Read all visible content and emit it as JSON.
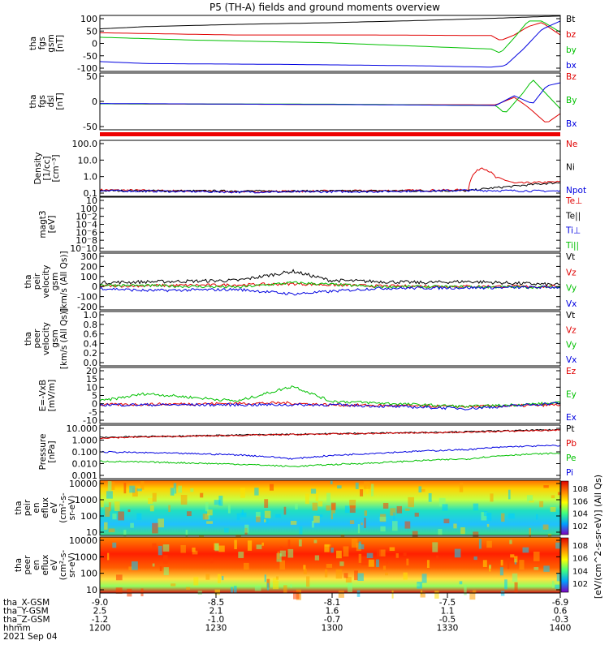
{
  "title": "P5 (TH-A) fields and ground moments overview",
  "chart_data": [
    {
      "type": "line",
      "panel_id": "fgs-gsm",
      "ylabel_lines": [
        "tha",
        "fgs",
        "gsm",
        "[nT]"
      ],
      "ylim": [
        -100,
        100
      ],
      "yticks": [
        "100",
        "50",
        "0",
        "-50",
        "-100"
      ],
      "series": [
        {
          "name": "Bt",
          "color": "#000000",
          "points": [
            [
              0,
              52
            ],
            [
              0.1,
              60
            ],
            [
              0.3,
              68
            ],
            [
              0.5,
              74
            ],
            [
              0.7,
              82
            ],
            [
              0.86,
              90
            ],
            [
              1.0,
              98
            ]
          ]
        },
        {
          "name": "bz",
          "color": "#e00000",
          "points": [
            [
              0,
              38
            ],
            [
              0.3,
              30
            ],
            [
              0.6,
              30
            ],
            [
              0.85,
              28
            ],
            [
              0.87,
              10
            ],
            [
              0.9,
              30
            ],
            [
              0.93,
              60
            ],
            [
              0.96,
              75
            ],
            [
              1.0,
              30
            ]
          ]
        },
        {
          "name": "by",
          "color": "#00c000",
          "points": [
            [
              0,
              22
            ],
            [
              0.2,
              12
            ],
            [
              0.5,
              2
            ],
            [
              0.85,
              -20
            ],
            [
              0.87,
              -35
            ],
            [
              0.9,
              20
            ],
            [
              0.93,
              80
            ],
            [
              0.96,
              80
            ],
            [
              1.0,
              40
            ]
          ]
        },
        {
          "name": "bx",
          "color": "#0000e0",
          "points": [
            [
              0,
              -65
            ],
            [
              0.1,
              -72
            ],
            [
              0.4,
              -75
            ],
            [
              0.7,
              -80
            ],
            [
              0.85,
              -85
            ],
            [
              0.88,
              -80
            ],
            [
              0.92,
              -20
            ],
            [
              0.96,
              50
            ],
            [
              1.0,
              80
            ]
          ]
        }
      ]
    },
    {
      "type": "line",
      "panel_id": "fgs-dsl",
      "ylabel_lines": [
        "tha",
        "fgs",
        "dsl",
        "[nT]"
      ],
      "ylim": [
        -75,
        100
      ],
      "yticks": [
        "50",
        "0",
        "-50"
      ],
      "series": [
        {
          "name": "Bz",
          "color": "#e00000",
          "points": [
            [
              0,
              5
            ],
            [
              0.5,
              3
            ],
            [
              0.86,
              2
            ],
            [
              0.9,
              25
            ],
            [
              0.93,
              -5
            ],
            [
              0.97,
              -55
            ],
            [
              1.0,
              -25
            ]
          ]
        },
        {
          "name": "By",
          "color": "#00c000",
          "points": [
            [
              0,
              5
            ],
            [
              0.5,
              4
            ],
            [
              0.86,
              0
            ],
            [
              0.88,
              -25
            ],
            [
              0.92,
              40
            ],
            [
              0.94,
              80
            ],
            [
              0.98,
              20
            ],
            [
              1.0,
              -10
            ]
          ]
        },
        {
          "name": "Bx",
          "color": "#0000e0",
          "points": [
            [
              0,
              6
            ],
            [
              0.5,
              3
            ],
            [
              0.86,
              0
            ],
            [
              0.9,
              30
            ],
            [
              0.94,
              5
            ],
            [
              0.97,
              60
            ],
            [
              1.0,
              70
            ]
          ]
        }
      ]
    },
    {
      "type": "line",
      "panel_id": "density",
      "ylabel_lines": [
        "Density",
        "[1/cc]",
        "[cm^-3]"
      ],
      "yscale": "log",
      "ylim": [
        0.1,
        100
      ],
      "yticks": [
        "100.0",
        "10.0",
        "1.0",
        "0.1"
      ],
      "series": [
        {
          "name": "Ne",
          "color": "#e00000",
          "points": [
            [
              0,
              0.22
            ],
            [
              0.3,
              0.18
            ],
            [
              0.6,
              0.2
            ],
            [
              0.8,
              0.22
            ],
            [
              0.83,
              3.5
            ],
            [
              0.86,
              1.0
            ],
            [
              0.9,
              0.5
            ],
            [
              1.0,
              0.6
            ]
          ]
        },
        {
          "name": "Ni",
          "color": "#000000",
          "points": [
            [
              0,
              0.2
            ],
            [
              0.4,
              0.19
            ],
            [
              0.8,
              0.2
            ],
            [
              0.9,
              0.35
            ],
            [
              1.0,
              0.55
            ]
          ]
        },
        {
          "name": "Npot",
          "color": "#0000e0",
          "points": [
            [
              0,
              0.2
            ],
            [
              0.3,
              0.17
            ],
            [
              0.6,
              0.18
            ],
            [
              0.8,
              0.21
            ],
            [
              1.0,
              0.19
            ]
          ]
        }
      ]
    },
    {
      "type": "line",
      "panel_id": "temperature",
      "ylabel_lines": [
        "magt3",
        "[eV]"
      ],
      "yscale": "log",
      "yticks": [
        "10",
        "10^0",
        "10^-2",
        "10^-4",
        "10^-6",
        "10^-8",
        "10^-10"
      ],
      "series": [
        {
          "name": "Te⊥",
          "color": "#e00000"
        },
        {
          "name": "Te||",
          "color": "#000000"
        },
        {
          "name": "Ti⊥",
          "color": "#0000e0"
        },
        {
          "name": "Ti||",
          "color": "#00c000"
        }
      ]
    },
    {
      "type": "line",
      "panel_id": "peir-velocity",
      "ylabel_lines": [
        "tha",
        "peir",
        "velocity",
        "gsm",
        "[km/s (All Qs)]"
      ],
      "ylim": [
        -200,
        300
      ],
      "yticks": [
        "300",
        "200",
        "100",
        "0",
        "-100",
        "-200"
      ],
      "series": [
        {
          "name": "Vt",
          "color": "#000000",
          "points": [
            [
              0,
              40
            ],
            [
              0.3,
              60
            ],
            [
              0.42,
              140
            ],
            [
              0.5,
              60
            ],
            [
              0.7,
              40
            ],
            [
              0.8,
              50
            ],
            [
              1.0,
              20
            ]
          ]
        },
        {
          "name": "Vz",
          "color": "#e00000",
          "points": [
            [
              0,
              10
            ],
            [
              0.3,
              20
            ],
            [
              0.42,
              30
            ],
            [
              0.6,
              10
            ],
            [
              1.0,
              5
            ]
          ]
        },
        {
          "name": "Vy",
          "color": "#00c000",
          "points": [
            [
              0,
              20
            ],
            [
              0.3,
              0
            ],
            [
              0.42,
              40
            ],
            [
              0.6,
              5
            ],
            [
              1.0,
              0
            ]
          ]
        },
        {
          "name": "Vx",
          "color": "#0000e0",
          "points": [
            [
              0,
              -10
            ],
            [
              0.1,
              -30
            ],
            [
              0.3,
              -20
            ],
            [
              0.42,
              -60
            ],
            [
              0.6,
              -10
            ],
            [
              1.0,
              0
            ]
          ]
        }
      ]
    },
    {
      "type": "line",
      "panel_id": "peer-velocity",
      "ylabel_lines": [
        "tha",
        "peer",
        "velocity",
        "gsm",
        "[km/s (All Qs)]"
      ],
      "ylim": [
        0,
        1
      ],
      "yticks": [
        "1.0",
        "0.8",
        "0.6",
        "0.4",
        "0.2",
        "0.0"
      ],
      "series": [
        {
          "name": "Vt",
          "color": "#000000"
        },
        {
          "name": "Vz",
          "color": "#e00000"
        },
        {
          "name": "Vy",
          "color": "#00c000"
        },
        {
          "name": "Vx",
          "color": "#0000e0"
        }
      ]
    },
    {
      "type": "line",
      "panel_id": "efield",
      "ylabel_lines": [
        "E=-VxB",
        "[mV/m]"
      ],
      "ylim": [
        -10,
        20
      ],
      "yticks": [
        "20",
        "15",
        "10",
        "5",
        "0",
        "-5",
        "-10"
      ],
      "series": [
        {
          "name": "Ez",
          "color": "#e00000",
          "points": [
            [
              0,
              0
            ],
            [
              0.4,
              1
            ],
            [
              0.5,
              0
            ],
            [
              0.8,
              -1
            ],
            [
              1.0,
              0
            ]
          ]
        },
        {
          "name": "Ey",
          "color": "#00c000",
          "points": [
            [
              0,
              2
            ],
            [
              0.1,
              6
            ],
            [
              0.3,
              2
            ],
            [
              0.42,
              10
            ],
            [
              0.5,
              2
            ],
            [
              0.8,
              -1
            ],
            [
              1.0,
              1
            ]
          ]
        },
        {
          "name": "Ex",
          "color": "#0000e0",
          "points": [
            [
              0,
              0
            ],
            [
              0.5,
              0
            ],
            [
              0.8,
              -2
            ],
            [
              1.0,
              1
            ]
          ]
        }
      ]
    },
    {
      "type": "line",
      "panel_id": "pressure",
      "ylabel_lines": [
        "Pressure",
        "[nPa]"
      ],
      "yscale": "log",
      "ylim": [
        0.001,
        10
      ],
      "yticks": [
        "10.000",
        "1.000",
        "0.100",
        "0.010",
        "0.001"
      ],
      "series": [
        {
          "name": "Pt",
          "color": "#000000",
          "points": [
            [
              0,
              1.2
            ],
            [
              0.3,
              1.8
            ],
            [
              0.6,
              2.5
            ],
            [
              0.8,
              3.2
            ],
            [
              1.0,
              4.5
            ]
          ]
        },
        {
          "name": "Pb",
          "color": "#e00000",
          "points": [
            [
              0,
              1.1
            ],
            [
              0.3,
              1.7
            ],
            [
              0.6,
              2.4
            ],
            [
              0.8,
              3.0
            ],
            [
              1.0,
              4.2
            ]
          ]
        },
        {
          "name": "Pe",
          "color": "#00c000",
          "points": [
            [
              0,
              0.02
            ],
            [
              0.3,
              0.012
            ],
            [
              0.42,
              0.008
            ],
            [
              0.6,
              0.015
            ],
            [
              0.8,
              0.03
            ],
            [
              0.9,
              0.06
            ],
            [
              1.0,
              0.08
            ]
          ]
        },
        {
          "name": "Pi",
          "color": "#0000e0",
          "points": [
            [
              0,
              0.1
            ],
            [
              0.3,
              0.06
            ],
            [
              0.42,
              0.03
            ],
            [
              0.6,
              0.08
            ],
            [
              0.8,
              0.15
            ],
            [
              0.9,
              0.25
            ],
            [
              1.0,
              0.3
            ]
          ]
        }
      ]
    },
    {
      "type": "heatmap",
      "panel_id": "peir-spectrogram",
      "ylabel_lines": [
        "tha",
        "peir",
        "en",
        "eflux",
        "eV",
        "(cm^2-s-",
        "sr-eV)"
      ],
      "yscale": "log",
      "yticks": [
        "10000",
        "1000",
        "100",
        "10"
      ],
      "colorbar_label": "[eV/(cm^2-s-sr-eV)] (All Qs)",
      "colorbar_ticks": [
        "10^8",
        "10^6",
        "10^4",
        "10^2"
      ]
    },
    {
      "type": "heatmap",
      "panel_id": "peer-spectrogram",
      "ylabel_lines": [
        "tha",
        "peer",
        "en",
        "eflux",
        "eV",
        "(cm^2-s-",
        "sr-eV)"
      ],
      "yscale": "log",
      "yticks": [
        "10000",
        "1000",
        "100",
        "10"
      ],
      "colorbar_label": "[eV/(cm^2-s-sr-eV)] (All Qs)",
      "colorbar_ticks": [
        "10^8",
        "10^6",
        "10^4",
        "10^2"
      ]
    }
  ],
  "x_axis": {
    "rows": [
      {
        "label": "tha_X-GSM",
        "values": [
          "-9.0",
          "-8.5",
          "-8.1",
          "-7.5",
          "-6.9"
        ]
      },
      {
        "label": "tha_Y-GSM",
        "values": [
          "2.5",
          "2.1",
          "1.6",
          "1.1",
          "0.6"
        ]
      },
      {
        "label": "tha_Z-GSM",
        "values": [
          "-1.2",
          "-1.0",
          "-0.7",
          "-0.5",
          "-0.3"
        ]
      },
      {
        "label": "hhmm",
        "values": [
          "1200",
          "1230",
          "1300",
          "1330",
          "1400"
        ]
      }
    ],
    "date": "2021 Sep 04"
  }
}
